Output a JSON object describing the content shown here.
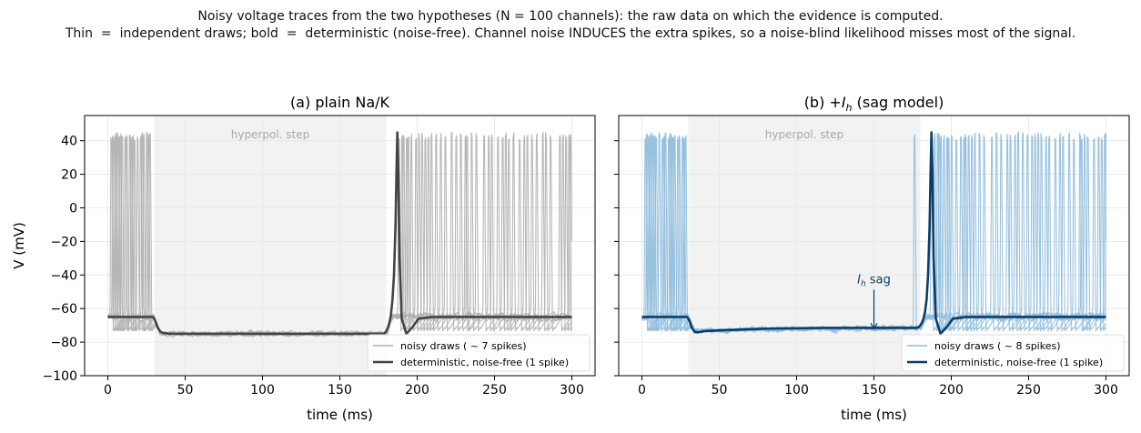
{
  "figure": {
    "suptitle_line1": "Noisy voltage traces from the two hypotheses (N = 100 channels): the raw data on which the evidence is computed.",
    "suptitle_line2": "Thin  =  independent draws; bold  =  deterministic (noise-free). Channel noise INDUCES the extra spikes, so a noise-blind likelihood misses most of the signal."
  },
  "colors": {
    "panel_a_noisy": "#b0b0b0",
    "panel_a_det": "#444444",
    "panel_b_noisy": "#8fbcdc",
    "panel_b_det": "#0b3d68",
    "step_shade": "#f2f2f2",
    "annotation": "#0b3d68"
  },
  "chart_data": [
    {
      "type": "line",
      "title": "(a) plain Na/K",
      "xlabel": "time (ms)",
      "ylabel": "V (mV)",
      "xlim": [
        -15,
        315
      ],
      "ylim": [
        -100,
        55
      ],
      "xticks": [
        0,
        50,
        100,
        150,
        200,
        250,
        300
      ],
      "yticks": [
        -100,
        -80,
        -60,
        -40,
        -20,
        0,
        20,
        40
      ],
      "grid": true,
      "shaded_region": {
        "x": [
          30,
          180
        ],
        "label": "hyperpol. step"
      },
      "legend": {
        "position": "lower right",
        "entries": [
          "noisy draws ( ~ 7 spikes)",
          "deterministic, noise-free (1 spike)"
        ]
      },
      "series": [
        {
          "name": "deterministic, noise-free (1 spike)",
          "style": "bold",
          "x": [
            0,
            29,
            30,
            31,
            32,
            34,
            36,
            40,
            50,
            100,
            150,
            178,
            179,
            180,
            181,
            182,
            183,
            184,
            185,
            186,
            186.6,
            187.2,
            187.8,
            188.6,
            190,
            193,
            197,
            201,
            210,
            300
          ],
          "y": [
            -65,
            -65,
            -66,
            -68,
            -71,
            -73.8,
            -74.6,
            -75,
            -75,
            -75,
            -75,
            -75,
            -74.6,
            -73.5,
            -71.5,
            -68.5,
            -64,
            -55,
            -40,
            -10,
            20,
            45,
            20,
            -30,
            -66,
            -75,
            -71,
            -66,
            -65,
            -65
          ]
        },
        {
          "name": "noisy draws ( ~ 7 spikes)",
          "style": "thin",
          "count": 8,
          "spike_times": [
            [
              4,
              12,
              22,
              188,
              201,
              222,
              248,
              271,
              296
            ],
            [
              6,
              16,
              25,
              193,
              209,
              232,
              257,
              283
            ],
            [
              3,
              14,
              27,
              190,
              215,
              238,
              266,
              292
            ],
            [
              8,
              19,
              196,
              205,
              228,
              252,
              277,
              299
            ],
            [
              5,
              11,
              23,
              199,
              218,
              243,
              262,
              286
            ],
            [
              9,
              21,
              191,
              212,
              235,
              259,
              281
            ],
            [
              2,
              15,
              26,
              203,
              225,
              246,
              269,
              294
            ],
            [
              7,
              17,
              194,
              207,
              231,
              255,
              274,
              298
            ]
          ]
        }
      ]
    },
    {
      "type": "line",
      "title": "(b) +I",
      "title_subscript": "h",
      "title_suffix": " (sag model)",
      "xlabel": "time (ms)",
      "ylabel": "",
      "xlim": [
        -15,
        315
      ],
      "ylim": [
        -100,
        55
      ],
      "xticks": [
        0,
        50,
        100,
        150,
        200,
        250,
        300
      ],
      "yticks": [
        -100,
        -80,
        -60,
        -40,
        -20,
        0,
        20,
        40
      ],
      "grid": true,
      "shaded_region": {
        "x": [
          30,
          180
        ],
        "label": "hyperpol. step"
      },
      "annotation": {
        "text": "I",
        "subscript": "h",
        "suffix": " sag",
        "x": 150,
        "y": -72,
        "text_y": -45
      },
      "legend": {
        "position": "lower right",
        "entries": [
          "noisy draws ( ~ 8 spikes)",
          "deterministic, noise-free (1 spike)"
        ]
      },
      "series": [
        {
          "name": "deterministic, noise-free (1 spike)",
          "style": "bold",
          "x": [
            0,
            29,
            30,
            31,
            32,
            34,
            36,
            40,
            50,
            80,
            120,
            178,
            179,
            180,
            181,
            182,
            183,
            184,
            185,
            186,
            186.6,
            187.2,
            187.8,
            188.6,
            190,
            193,
            197,
            201,
            210,
            300
          ],
          "y": [
            -65,
            -65,
            -66,
            -68,
            -71,
            -73.8,
            -74.2,
            -73.5,
            -73,
            -72,
            -71.5,
            -71.5,
            -71,
            -70,
            -68.5,
            -66,
            -62,
            -55,
            -40,
            -10,
            20,
            45,
            20,
            -30,
            -66,
            -75,
            -71,
            -66,
            -65,
            -65
          ]
        },
        {
          "name": "noisy draws ( ~ 8 spikes)",
          "style": "thin",
          "count": 8,
          "spike_times": [
            [
              4,
              11,
              20,
              27,
              187,
              198,
              215,
              241,
              263,
              288
            ],
            [
              6,
              14,
              24,
              176,
              192,
              208,
              229,
              252,
              279,
              300
            ],
            [
              3,
              17,
              26,
              189,
              203,
              221,
              246,
              270,
              295
            ],
            [
              8,
              21,
              195,
              211,
              226,
              249,
              258,
              283
            ],
            [
              5,
              13,
              23,
              191,
              206,
              236,
              261,
              286,
              297
            ],
            [
              9,
              18,
              197,
              213,
              232,
              254,
              276,
              292
            ],
            [
              2,
              15,
              28,
              193,
              218,
              243,
              267,
              284
            ],
            [
              7,
              19,
              200,
              209,
              238,
              256,
              272,
              299
            ]
          ]
        }
      ]
    }
  ]
}
